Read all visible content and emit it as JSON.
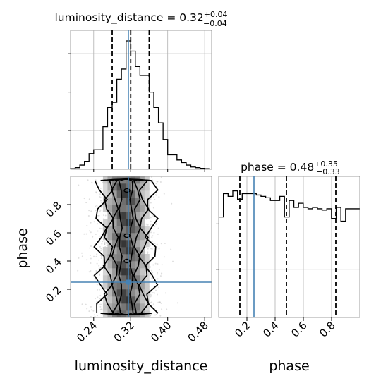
{
  "chart_data": [
    {
      "type": "histogram",
      "panel": "luminosity_distance marginal",
      "title": "luminosity_distance = 0.32",
      "title_parts": {
        "prefix": "luminosity_distance = 0.32",
        "sup": "+0.04",
        "sub": "−0.04"
      },
      "xlim": [
        0.19,
        0.495
      ],
      "grid": true,
      "bin_edges_start": 0.19,
      "bin_width": 0.01,
      "bin_count": 30,
      "counts": [
        0.002,
        0.01,
        0.03,
        0.06,
        0.12,
        0.15,
        0.15,
        0.33,
        0.48,
        0.52,
        0.7,
        0.78,
        1.0,
        0.92,
        0.8,
        0.73,
        0.73,
        0.6,
        0.48,
        0.36,
        0.23,
        0.11,
        0.11,
        0.07,
        0.05,
        0.03,
        0.015,
        0.01,
        0.005,
        0.002
      ],
      "quantiles": [
        0.28,
        0.32,
        0.36
      ],
      "truth": 0.315
    },
    {
      "type": "contour",
      "panel": "2D luminosity_distance vs phase",
      "xlabel": "luminosity_distance",
      "ylabel": "phase",
      "xlim": [
        0.19,
        0.495
      ],
      "ylim": [
        0.0,
        1.0
      ],
      "xticks": [
        "0.24",
        "0.32",
        "0.40",
        "0.48"
      ],
      "yticks": [
        "0.2",
        "0.4",
        "0.6",
        "0.8"
      ],
      "contour_levels_x_halfwidths": [
        0.012,
        0.024,
        0.038,
        0.055
      ],
      "center_x": 0.31,
      "truth": {
        "x": 0.315,
        "y": 0.25
      }
    },
    {
      "type": "histogram",
      "panel": "phase marginal",
      "title": "phase = 0.48",
      "title_parts": {
        "prefix": "phase = 0.48",
        "sup": "+0.35",
        "sub": "−0.33"
      },
      "xlabel": "phase",
      "xlim": [
        0.0,
        1.0
      ],
      "xticks": [
        "0.2",
        "0.4",
        "0.6",
        "0.8"
      ],
      "grid": true,
      "bin_edges_start": 0.0,
      "bin_width": 0.0333,
      "bin_count": 30,
      "counts": [
        0.73,
        0.9,
        0.88,
        0.92,
        0.86,
        0.9,
        0.9,
        0.9,
        0.89,
        0.88,
        0.87,
        0.85,
        0.85,
        0.88,
        0.73,
        0.85,
        0.8,
        0.83,
        0.8,
        0.79,
        0.8,
        0.79,
        0.78,
        0.79,
        0.72,
        0.8,
        0.7,
        0.79,
        0.79,
        0.79
      ],
      "quantiles": [
        0.15,
        0.48,
        0.83
      ],
      "truth": 0.25
    }
  ],
  "colors": {
    "truth": "#4682b4",
    "hist": "#000000",
    "grid": "#b0b0b0",
    "scatter": "#808080"
  }
}
